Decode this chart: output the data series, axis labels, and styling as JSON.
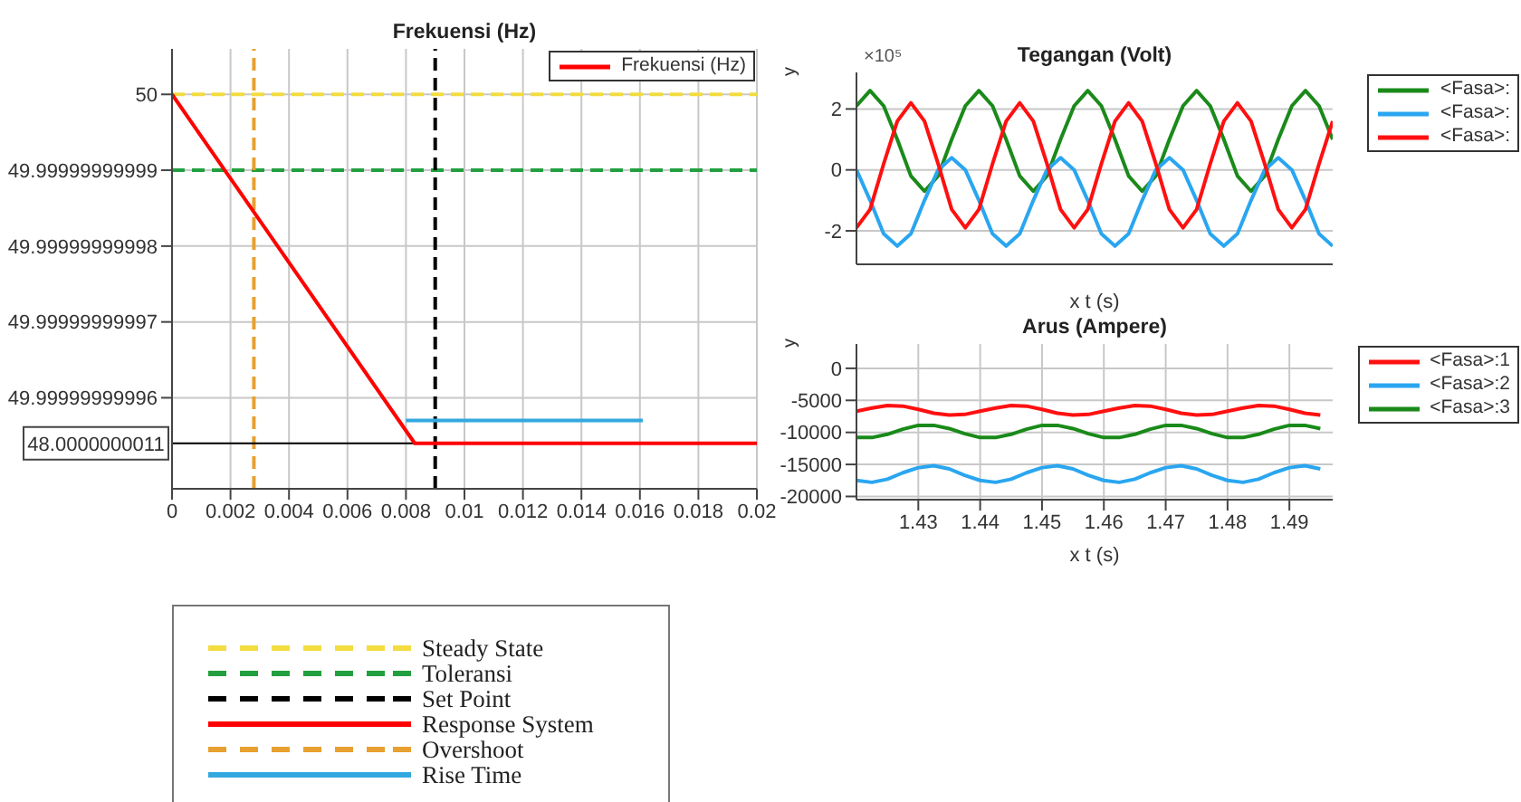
{
  "chart_data": [
    {
      "type": "line",
      "title": "Frekuensi (Hz)",
      "grid": true,
      "legend": "bottom",
      "xlim": [
        0,
        0.02
      ],
      "xticks": [
        0,
        0.002,
        0.004,
        0.006,
        0.008,
        0.01,
        0.012,
        0.014,
        0.016,
        0.018,
        0.02
      ],
      "ylim": [
        49.999999999948,
        50.000000000006
      ],
      "yticks": [
        49.99999999996,
        49.99999999997,
        49.99999999998,
        49.99999999999,
        50
      ],
      "series": [
        {
          "name": "Frekuensi (Hz)",
          "color": "#ff0000",
          "x": [
            0,
            0.0083,
            0.02
          ],
          "values": [
            50,
            49.999999999954,
            49.999999999954
          ]
        },
        {
          "name": "Rise Time",
          "color": "#33a8e0",
          "x": [
            0.008,
            0.0161
          ],
          "values": [
            49.999999999957,
            49.999999999957
          ]
        }
      ],
      "ref_lines": [
        {
          "axis": "y",
          "value": 50,
          "label": "Steady State",
          "color": "#f2dc40",
          "line_style": "dashed"
        },
        {
          "axis": "y",
          "value": 49.99999999999,
          "label": "Toleransi",
          "color": "#22a040",
          "line_style": "dashed"
        },
        {
          "axis": "x",
          "value": 0.009,
          "label": "Set Point",
          "color": "#000000",
          "line_style": "dashed"
        },
        {
          "axis": "x",
          "value": 0.0028,
          "label": "Overshoot",
          "color": "#e8a030",
          "line_style": "dashed"
        },
        {
          "axis": "y",
          "value": 49.999999999954,
          "color": "#000000",
          "line_style": "solid"
        }
      ],
      "annotations": [
        "Response System",
        "48.0000000011"
      ]
    },
    {
      "type": "line",
      "title": "Tegangan (Volt)",
      "xlabel": "x t (s)",
      "ylabel": "y",
      "grid": "y",
      "legend": "top right",
      "tick_labels": "y",
      "categories": [
        null,
        null,
        null,
        null,
        null,
        null,
        null,
        null,
        null,
        null,
        null,
        null,
        null,
        null,
        null,
        null,
        null,
        null,
        null,
        null,
        null,
        null,
        null,
        null,
        null,
        null,
        null,
        null,
        null,
        null,
        null,
        null,
        null,
        null,
        null,
        null
      ],
      "ylim": [
        -3.1,
        3.2
      ],
      "yticks": [
        -2,
        0,
        2
      ],
      "series": [
        {
          "name": "<Fasa>:",
          "color": "#1a8a1a",
          "values": [
            2.1,
            2.6,
            2.1,
            1,
            -0.2,
            -0.7,
            -0.2,
            1,
            2.1,
            2.6,
            2.1,
            1,
            -0.2,
            -0.7,
            -0.2,
            1,
            2.1,
            2.6,
            2.1,
            1,
            -0.2,
            -0.7,
            -0.2,
            1,
            2.1,
            2.6,
            2.1,
            1,
            -0.2,
            -0.7,
            -0.2,
            1,
            2.1,
            2.6,
            2.1,
            1
          ]
        },
        {
          "name": "<Fasa>:",
          "color": "#2aa6f0",
          "values": [
            0,
            -1,
            -2.1,
            -2.5,
            -2.1,
            -1,
            0,
            0.4,
            0,
            -1,
            -2.1,
            -2.5,
            -2.1,
            -1,
            0,
            0.4,
            0,
            -1,
            -2.1,
            -2.5,
            -2.1,
            -1,
            0,
            0.4,
            0,
            -1,
            -2.1,
            -2.5,
            -2.1,
            -1,
            0,
            0.4,
            0,
            -1,
            -2.1,
            -2.5
          ]
        },
        {
          "name": "<Fasa>:",
          "color": "#ff1010",
          "values": [
            -1.9,
            -1.3,
            0.2,
            1.6,
            2.2,
            1.6,
            0.2,
            -1.3,
            -1.9,
            -1.3,
            0.2,
            1.6,
            2.2,
            1.6,
            0.2,
            -1.3,
            -1.9,
            -1.3,
            0.2,
            1.6,
            2.2,
            1.6,
            0.2,
            -1.3,
            -1.9,
            -1.3,
            0.2,
            1.6,
            2.2,
            1.6,
            0.2,
            -1.3,
            -1.9,
            -1.3,
            0.2,
            1.6
          ]
        }
      ],
      "annotations": [
        "×10⁵"
      ]
    },
    {
      "type": "line",
      "title": "Arus (Ampere)",
      "xlabel": "x t (s)",
      "ylabel": "y",
      "grid": true,
      "legend": "top right",
      "x": [
        1.42,
        1.4225,
        1.425,
        1.4275,
        1.43,
        1.4325,
        1.435,
        1.4375,
        1.44,
        1.4425,
        1.445,
        1.4475,
        1.45,
        1.4525,
        1.455,
        1.4575,
        1.46,
        1.4625,
        1.465,
        1.4675,
        1.47,
        1.4725,
        1.475,
        1.4775,
        1.48,
        1.4825,
        1.485,
        1.4875,
        1.49,
        1.4925,
        1.495
      ],
      "xlim": [
        1.42,
        1.497
      ],
      "xticks": [
        1.43,
        1.44,
        1.45,
        1.46,
        1.47,
        1.48,
        1.49
      ],
      "ylim": [
        -20500,
        3800
      ],
      "yticks": [
        -20000,
        -15000,
        -10000,
        -5000,
        0
      ],
      "series": [
        {
          "name": "<Fasa>:1",
          "color": "#ff1010",
          "values": [
            -6700,
            -6200,
            -5800,
            -5900,
            -6400,
            -7000,
            -7300,
            -7200,
            -6700,
            -6200,
            -5800,
            -5900,
            -6400,
            -7000,
            -7300,
            -7200,
            -6700,
            -6200,
            -5800,
            -5900,
            -6400,
            -7000,
            -7300,
            -7200,
            -6700,
            -6200,
            -5800,
            -5900,
            -6400,
            -7000,
            -7300
          ]
        },
        {
          "name": "<Fasa>:2",
          "color": "#2aa6f0",
          "values": [
            -17500,
            -17800,
            -17300,
            -16300,
            -15500,
            -15200,
            -15700,
            -16700,
            -17500,
            -17800,
            -17300,
            -16300,
            -15500,
            -15200,
            -15700,
            -16700,
            -17500,
            -17800,
            -17300,
            -16300,
            -15500,
            -15200,
            -15700,
            -16700,
            -17500,
            -17800,
            -17300,
            -16300,
            -15500,
            -15200,
            -15700
          ]
        },
        {
          "name": "<Fasa>:3",
          "color": "#1a8a1a",
          "values": [
            -10800,
            -10800,
            -10300,
            -9500,
            -8900,
            -8900,
            -9400,
            -10200,
            -10800,
            -10800,
            -10300,
            -9500,
            -8900,
            -8900,
            -9400,
            -10200,
            -10800,
            -10800,
            -10300,
            -9500,
            -8900,
            -8900,
            -9400,
            -10200,
            -10800,
            -10800,
            -10300,
            -9500,
            -8900,
            -8900,
            -9400
          ]
        }
      ]
    }
  ]
}
